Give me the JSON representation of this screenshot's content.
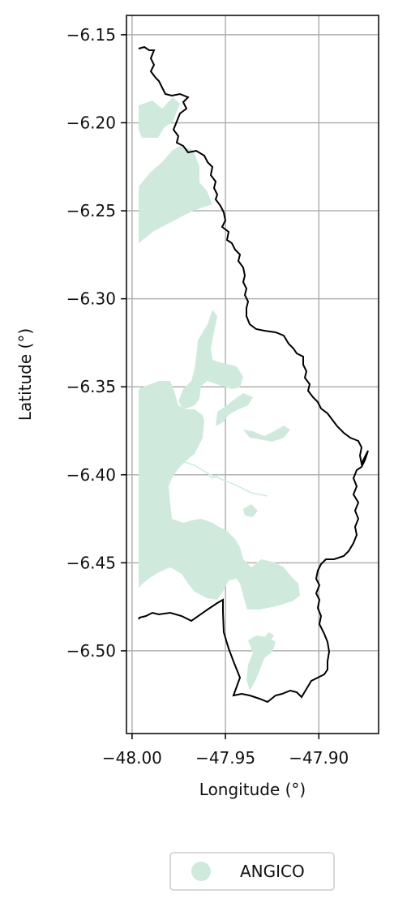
{
  "chart_data": {
    "type": "map",
    "xlabel": "Longitude (°)",
    "ylabel": "Latitude (°)",
    "xlim": [
      -48.003,
      -47.868
    ],
    "ylim": [
      -6.547,
      -6.139
    ],
    "xticks": [
      -48.0,
      -47.95,
      -47.9
    ],
    "xtick_labels": [
      "−48.00",
      "−47.95",
      "−47.90"
    ],
    "yticks": [
      -6.15,
      -6.2,
      -6.25,
      -6.3,
      -6.35,
      -6.4,
      -6.45,
      -6.5
    ],
    "ytick_labels": [
      "−6.15",
      "−6.20",
      "−6.25",
      "−6.30",
      "−6.35",
      "−6.40",
      "−6.45",
      "−6.50"
    ],
    "grid": true,
    "legend": {
      "placement": "bottom-center",
      "entries": [
        {
          "label": "ANGICO",
          "color": "#cfeadc"
        }
      ]
    },
    "colors": {
      "fill": "#cfeadc",
      "boundary": "#000000",
      "grid": "#b0b0b0"
    }
  }
}
